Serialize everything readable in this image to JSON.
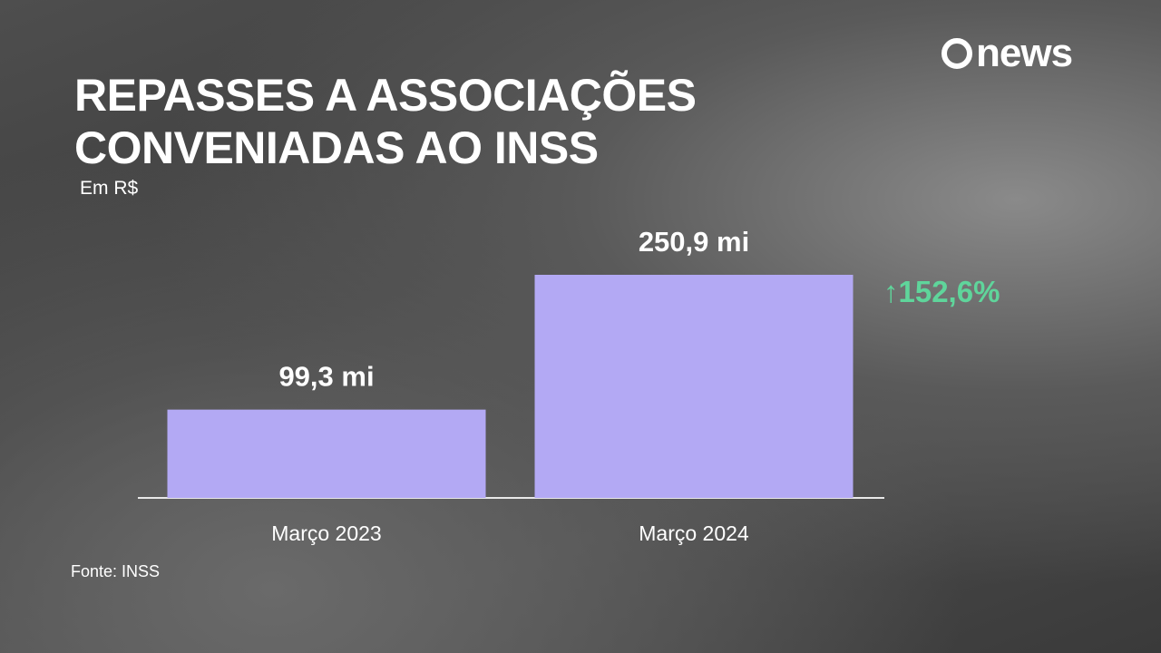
{
  "chart_data": {
    "type": "bar",
    "title": "REPASSES A ASSOCIAÇÕES CONVENIADAS AO INSS",
    "subtitle": "Em R$",
    "categories": [
      "Março 2023",
      "Março 2024"
    ],
    "values": [
      99.3,
      250.9
    ],
    "value_labels": [
      "99,3 mi",
      "250,9 mi"
    ],
    "color": "#b3a9f4",
    "annotation": "↑152,6%",
    "annotation_color": "#5fd59b",
    "source": "Fonte: INSS",
    "logo": "news"
  }
}
